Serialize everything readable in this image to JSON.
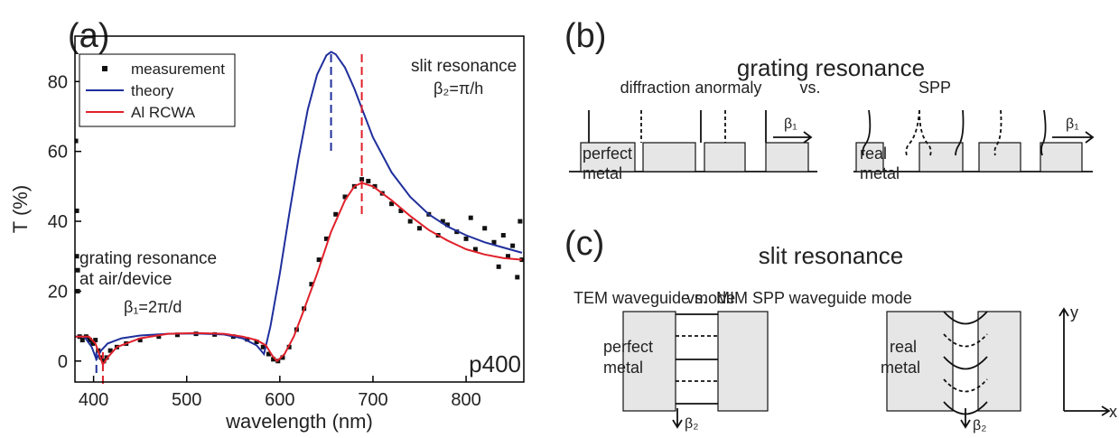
{
  "chart_data": {
    "type": "line",
    "panel_label": "(a)",
    "xlabel": "wavelength (nm)",
    "ylabel": "T (%)",
    "xlim": [
      380,
      862
    ],
    "ylim": [
      -6,
      93
    ],
    "xticks": [
      400,
      500,
      600,
      700,
      800
    ],
    "yticks": [
      0,
      20,
      40,
      60,
      80
    ],
    "legend": "upper left",
    "series": [
      {
        "name": "measurement",
        "color": "#111111",
        "style": "markers",
        "x": [
          381,
          382,
          382,
          383,
          383,
          385,
          388,
          392,
          396,
          399,
          402,
          405,
          408,
          411,
          414,
          418,
          425,
          435,
          450,
          470,
          490,
          510,
          530,
          550,
          565,
          575,
          582,
          588,
          593,
          598,
          603,
          610,
          618,
          626,
          634,
          642,
          650,
          660,
          670,
          680,
          688,
          695,
          702,
          710,
          720,
          730,
          740,
          750,
          760,
          770,
          775,
          780,
          790,
          800,
          805,
          810,
          820,
          830,
          835,
          840,
          845,
          850,
          855,
          858,
          860
        ],
        "values": [
          63,
          43,
          30,
          26,
          20,
          7,
          6,
          7,
          6,
          5,
          6,
          3,
          1,
          0,
          1,
          3,
          4,
          5,
          6,
          7,
          7.5,
          7.8,
          7.6,
          7,
          6.2,
          5.5,
          4,
          2,
          0.5,
          0,
          1,
          4,
          9,
          15,
          22,
          29,
          35,
          42,
          47,
          50,
          52,
          51.5,
          50,
          48,
          45,
          43,
          40,
          38,
          42,
          36,
          40,
          39,
          37,
          35,
          41,
          32,
          38,
          34,
          27,
          36,
          30,
          33,
          24,
          40,
          29
        ]
      },
      {
        "name": "theory",
        "color": "#1f2f9c",
        "style": "line",
        "x": [
          380,
          390,
          398,
          403,
          408,
          415,
          430,
          450,
          480,
          510,
          540,
          560,
          575,
          583,
          590,
          600,
          610,
          620,
          630,
          640,
          650,
          655,
          660,
          670,
          680,
          690,
          700,
          720,
          740,
          760,
          780,
          800,
          820,
          840,
          860
        ],
        "values": [
          7,
          7,
          4,
          0.5,
          3,
          5,
          6.5,
          7.3,
          7.8,
          7.9,
          7.6,
          6.5,
          4.5,
          2,
          10,
          25,
          42,
          58,
          72,
          82,
          87.5,
          88.5,
          87.8,
          84,
          78,
          71,
          64,
          54,
          47,
          42,
          38.5,
          36,
          34,
          32.5,
          31
        ]
      },
      {
        "name": "Al RCWA",
        "color": "#e0202a",
        "style": "line",
        "x": [
          380,
          395,
          402,
          406,
          410,
          415,
          425,
          450,
          480,
          510,
          540,
          560,
          575,
          585,
          592,
          597,
          605,
          615,
          625,
          640,
          655,
          670,
          680,
          688,
          700,
          720,
          740,
          760,
          780,
          800,
          820,
          840,
          860
        ],
        "values": [
          7,
          7,
          5,
          2,
          -1,
          1,
          4,
          6.5,
          7.8,
          8,
          7.8,
          7,
          6,
          4.5,
          1.5,
          0,
          2,
          7,
          14,
          25,
          37,
          46,
          50,
          51,
          50,
          46,
          41.5,
          37.5,
          34.5,
          32,
          30.5,
          29.5,
          29
        ]
      }
    ],
    "resonance_lines": [
      {
        "x": 403,
        "color": "#1f2f9c"
      },
      {
        "x": 410,
        "color": "#e0202a"
      },
      {
        "x": 655,
        "color": "#1f2f9c"
      },
      {
        "x": 688,
        "color": "#e0202a"
      }
    ],
    "annotations": [
      {
        "text": [
          "grating resonance",
          "at air/device"
        ]
      },
      {
        "text": "β₁=2π/d"
      },
      {
        "text": "slit resonance"
      },
      {
        "text": "β₂=π/h"
      },
      {
        "text": "p400"
      }
    ]
  },
  "panel_b": {
    "label": "(b)",
    "title": "grating resonance",
    "left_label": "diffraction anormaly",
    "vs": "vs.",
    "right_label": "SPP",
    "beta": "β₁",
    "left_metal": [
      "perfect",
      "metal"
    ],
    "right_metal": [
      "real",
      "metal"
    ]
  },
  "panel_c": {
    "label": "(c)",
    "title": "slit resonance",
    "left_label": "TEM waveguide mode",
    "vs": "vs.",
    "right_label": "MIM SPP waveguide mode",
    "beta": "β₂",
    "left_metal": [
      "perfect",
      "metal"
    ],
    "right_metal": [
      "real",
      "metal"
    ],
    "axis_y": "y",
    "axis_x": "x"
  }
}
